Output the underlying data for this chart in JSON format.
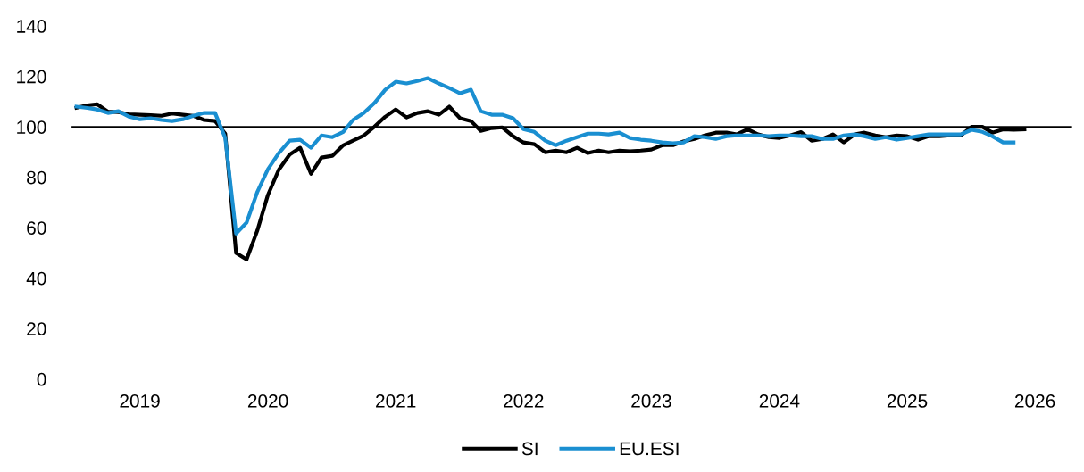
{
  "chart_data": {
    "type": "line",
    "x": [
      "2019-01",
      "2019-02",
      "2019-03",
      "2019-04",
      "2019-05",
      "2019-06",
      "2019-07",
      "2019-08",
      "2019-09",
      "2019-10",
      "2019-11",
      "2019-12",
      "2020-01",
      "2020-02",
      "2020-03",
      "2020-04",
      "2020-05",
      "2020-06",
      "2020-07",
      "2020-08",
      "2020-09",
      "2020-10",
      "2020-11",
      "2020-12",
      "2021-01",
      "2021-02",
      "2021-03",
      "2021-04",
      "2021-05",
      "2021-06",
      "2021-07",
      "2021-08",
      "2021-09",
      "2021-10",
      "2021-11",
      "2021-12",
      "2022-01",
      "2022-02",
      "2022-03",
      "2022-04",
      "2022-05",
      "2022-06",
      "2022-07",
      "2022-08",
      "2022-09",
      "2022-10",
      "2022-11",
      "2022-12",
      "2023-01",
      "2023-02",
      "2023-03",
      "2023-04",
      "2023-05",
      "2023-06",
      "2023-07",
      "2023-08",
      "2023-09",
      "2023-10",
      "2023-11",
      "2023-12",
      "2024-01",
      "2024-02",
      "2024-03",
      "2024-04",
      "2024-05",
      "2024-06",
      "2024-07",
      "2024-08",
      "2024-09",
      "2024-10",
      "2024-11",
      "2024-12",
      "2025-01",
      "2025-02",
      "2025-03",
      "2025-04",
      "2025-05",
      "2025-06",
      "2025-07",
      "2025-08",
      "2025-09",
      "2025-10",
      "2025-11",
      "2025-12",
      "2026-01",
      "2026-02",
      "2026-03",
      "2026-04",
      "2026-05",
      "2026-06"
    ],
    "xlim": [
      "2018-12-18",
      "2026-10-15"
    ],
    "xticks": [
      {
        "value": "2019-07-01",
        "label": "2019"
      },
      {
        "value": "2020-07-01",
        "label": "2020"
      },
      {
        "value": "2021-07-01",
        "label": "2021"
      },
      {
        "value": "2022-07-01",
        "label": "2022"
      },
      {
        "value": "2023-07-01",
        "label": "2023"
      },
      {
        "value": "2024-07-01",
        "label": "2024"
      },
      {
        "value": "2025-07-01",
        "label": "2025"
      },
      {
        "value": "2026-07-01",
        "label": "2026"
      }
    ],
    "ylim": [
      0,
      140
    ],
    "yticks": [
      0,
      20,
      40,
      60,
      80,
      100,
      120,
      140
    ],
    "grid": false,
    "legend": "bottom",
    "marker": "none",
    "line_style": "solid",
    "ref_lines": [
      {
        "axis": "y",
        "value": 100,
        "label": null,
        "color": "#000000"
      }
    ],
    "series": [
      {
        "name": "SI",
        "color": "#000000",
        "values": [
          107.6,
          108.5,
          109,
          106,
          105.8,
          105,
          104.8,
          104.6,
          104.4,
          105.3,
          104.8,
          104.4,
          102.7,
          102.3,
          97.3,
          50,
          47.4,
          59,
          73,
          83,
          89,
          91.7,
          81.4,
          87.8,
          88.5,
          92.7,
          94.5,
          96.6,
          100,
          104,
          106.9,
          103.7,
          105.5,
          106.2,
          104.8,
          108,
          103.4,
          102.3,
          98.4,
          99.5,
          99.8,
          96.3,
          93.8,
          93.1,
          89.9,
          90.6,
          89.9,
          91.7,
          89.6,
          90.6,
          89.9,
          90.6,
          90.3,
          90.6,
          91,
          92.7,
          92.7,
          94.2,
          95.2,
          96.6,
          97.7,
          97.7,
          97,
          99,
          97,
          95.9,
          95.6,
          96.6,
          97.9,
          94.5,
          95.2,
          97,
          93.8,
          97,
          97.7,
          96.6,
          95.9,
          96.6,
          96.3,
          94.9,
          96.3,
          96.3,
          96.6,
          96.6,
          100,
          100,
          97.7,
          99,
          98.8,
          99
        ]
      },
      {
        "name": "EU.ESI",
        "color": "#1a8fd1",
        "values": [
          108,
          107.5,
          106.9,
          105.5,
          106.2,
          104,
          103,
          103.4,
          102.7,
          102.3,
          103,
          104.4,
          105.5,
          105.5,
          95.6,
          57.7,
          62,
          74.3,
          83.2,
          89.6,
          94.5,
          94.9,
          91.7,
          96.6,
          95.9,
          98,
          102.7,
          105.5,
          109.4,
          114.7,
          117.9,
          117.2,
          118.2,
          119.3,
          117.2,
          115.4,
          113.3,
          114.7,
          106.2,
          104.8,
          104.8,
          103.4,
          99.1,
          98,
          94.5,
          92.7,
          94.5,
          95.9,
          97.3,
          97.3,
          97,
          97.7,
          95.6,
          94.9,
          94.5,
          93.8,
          93.5,
          93.8,
          96.3,
          95.9,
          95.2,
          96.3,
          96.6,
          96.6,
          96.6,
          96.3,
          96.6,
          96.6,
          96.3,
          96.3,
          95.2,
          95.2,
          96.6,
          97,
          96.3,
          95.2,
          95.9,
          94.9,
          95.6,
          96.3,
          97,
          97,
          97,
          97,
          98.8,
          98,
          96.3,
          93.8,
          93.8,
          null
        ]
      }
    ]
  }
}
